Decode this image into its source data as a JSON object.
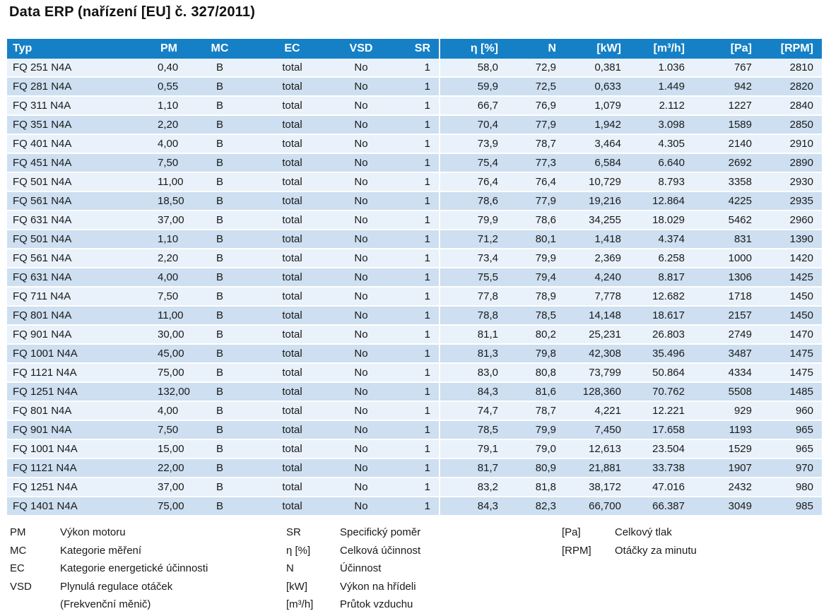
{
  "title": "Data ERP (nařízení [EU] č. 327/2011)",
  "colors": {
    "header_bg": "#1580C6",
    "row_light": "#E9F1FA",
    "row_dark": "#CDDFF0",
    "header_text": "#FFFFFF",
    "body_text": "#1A1A1A"
  },
  "table": {
    "columns": [
      {
        "key": "typ",
        "label": "Typ"
      },
      {
        "key": "pm",
        "label": "PM"
      },
      {
        "key": "mc",
        "label": "MC"
      },
      {
        "key": "ec",
        "label": "EC"
      },
      {
        "key": "vsd",
        "label": "VSD"
      },
      {
        "key": "sr",
        "label": "SR"
      },
      {
        "key": "eta",
        "label": "η [%]"
      },
      {
        "key": "n",
        "label": "N"
      },
      {
        "key": "kw",
        "label": "[kW]"
      },
      {
        "key": "m3h",
        "label": "[m³/h]"
      },
      {
        "key": "pa",
        "label": "[Pa]"
      },
      {
        "key": "rpm",
        "label": "[RPM]"
      }
    ],
    "rows": [
      [
        "FQ 251 N4A",
        "0,40",
        "B",
        "total",
        "No",
        "1",
        "58,0",
        "72,9",
        "0,381",
        "1.036",
        "767",
        "2810"
      ],
      [
        "FQ 281 N4A",
        "0,55",
        "B",
        "total",
        "No",
        "1",
        "59,9",
        "72,5",
        "0,633",
        "1.449",
        "942",
        "2820"
      ],
      [
        "FQ 311 N4A",
        "1,10",
        "B",
        "total",
        "No",
        "1",
        "66,7",
        "76,9",
        "1,079",
        "2.112",
        "1227",
        "2840"
      ],
      [
        "FQ 351 N4A",
        "2,20",
        "B",
        "total",
        "No",
        "1",
        "70,4",
        "77,9",
        "1,942",
        "3.098",
        "1589",
        "2850"
      ],
      [
        "FQ 401 N4A",
        "4,00",
        "B",
        "total",
        "No",
        "1",
        "73,9",
        "78,7",
        "3,464",
        "4.305",
        "2140",
        "2910"
      ],
      [
        "FQ 451 N4A",
        "7,50",
        "B",
        "total",
        "No",
        "1",
        "75,4",
        "77,3",
        "6,584",
        "6.640",
        "2692",
        "2890"
      ],
      [
        "FQ 501 N4A",
        "11,00",
        "B",
        "total",
        "No",
        "1",
        "76,4",
        "76,4",
        "10,729",
        "8.793",
        "3358",
        "2930"
      ],
      [
        "FQ 561 N4A",
        "18,50",
        "B",
        "total",
        "No",
        "1",
        "78,6",
        "77,9",
        "19,216",
        "12.864",
        "4225",
        "2935"
      ],
      [
        "FQ 631 N4A",
        "37,00",
        "B",
        "total",
        "No",
        "1",
        "79,9",
        "78,6",
        "34,255",
        "18.029",
        "5462",
        "2960"
      ],
      [
        "FQ 501 N4A",
        "1,10",
        "B",
        "total",
        "No",
        "1",
        "71,2",
        "80,1",
        "1,418",
        "4.374",
        "831",
        "1390"
      ],
      [
        "FQ 561 N4A",
        "2,20",
        "B",
        "total",
        "No",
        "1",
        "73,4",
        "79,9",
        "2,369",
        "6.258",
        "1000",
        "1420"
      ],
      [
        "FQ 631 N4A",
        "4,00",
        "B",
        "total",
        "No",
        "1",
        "75,5",
        "79,4",
        "4,240",
        "8.817",
        "1306",
        "1425"
      ],
      [
        "FQ 711 N4A",
        "7,50",
        "B",
        "total",
        "No",
        "1",
        "77,8",
        "78,9",
        "7,778",
        "12.682",
        "1718",
        "1450"
      ],
      [
        "FQ 801 N4A",
        "11,00",
        "B",
        "total",
        "No",
        "1",
        "78,8",
        "78,5",
        "14,148",
        "18.617",
        "2157",
        "1450"
      ],
      [
        "FQ 901 N4A",
        "30,00",
        "B",
        "total",
        "No",
        "1",
        "81,1",
        "80,2",
        "25,231",
        "26.803",
        "2749",
        "1470"
      ],
      [
        "FQ 1001 N4A",
        "45,00",
        "B",
        "total",
        "No",
        "1",
        "81,3",
        "79,8",
        "42,308",
        "35.496",
        "3487",
        "1475"
      ],
      [
        "FQ 1121 N4A",
        "75,00",
        "B",
        "total",
        "No",
        "1",
        "83,0",
        "80,8",
        "73,799",
        "50.864",
        "4334",
        "1475"
      ],
      [
        "FQ 1251 N4A",
        "132,00",
        "B",
        "total",
        "No",
        "1",
        "84,3",
        "81,6",
        "128,360",
        "70.762",
        "5508",
        "1485"
      ],
      [
        "FQ 801 N4A",
        "4,00",
        "B",
        "total",
        "No",
        "1",
        "74,7",
        "78,7",
        "4,221",
        "12.221",
        "929",
        "960"
      ],
      [
        "FQ 901 N4A",
        "7,50",
        "B",
        "total",
        "No",
        "1",
        "78,5",
        "79,9",
        "7,450",
        "17.658",
        "1193",
        "965"
      ],
      [
        "FQ 1001 N4A",
        "15,00",
        "B",
        "total",
        "No",
        "1",
        "79,1",
        "79,0",
        "12,613",
        "23.504",
        "1529",
        "965"
      ],
      [
        "FQ 1121 N4A",
        "22,00",
        "B",
        "total",
        "No",
        "1",
        "81,7",
        "80,9",
        "21,881",
        "33.738",
        "1907",
        "970"
      ],
      [
        "FQ 1251 N4A",
        "37,00",
        "B",
        "total",
        "No",
        "1",
        "83,2",
        "81,8",
        "38,172",
        "47.016",
        "2432",
        "980"
      ],
      [
        "FQ 1401 N4A",
        "75,00",
        "B",
        "total",
        "No",
        "1",
        "84,3",
        "82,3",
        "66,700",
        "66.387",
        "3049",
        "985"
      ]
    ]
  },
  "legend": {
    "col1": [
      {
        "key": "PM",
        "desc": "Výkon motoru"
      },
      {
        "key": "MC",
        "desc": "Kategorie měření"
      },
      {
        "key": "EC",
        "desc": "Kategorie energetické účinnosti"
      },
      {
        "key": "VSD",
        "desc": "Plynulá regulace otáček"
      },
      {
        "key": "",
        "desc": "(Frekvenční měnič)"
      }
    ],
    "col2": [
      {
        "key": "SR",
        "desc": "Specifický poměr"
      },
      {
        "key": "η [%]",
        "desc": "Celková účinnost"
      },
      {
        "key": "N",
        "desc": "Účinnost"
      },
      {
        "key": "[kW]",
        "desc": "Výkon na hřídeli"
      },
      {
        "key": "[m³/h]",
        "desc": "Průtok vzduchu"
      }
    ],
    "col3": [
      {
        "key": "[Pa]",
        "desc": "Celkový tlak"
      },
      {
        "key": "[RPM]",
        "desc": "Otáčky za minutu"
      }
    ]
  }
}
